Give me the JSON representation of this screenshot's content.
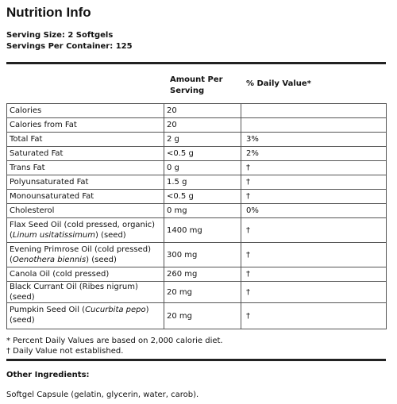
{
  "title": "Nutrition Info",
  "serving_size": "Serving Size: 2 Softgels",
  "servings_per_container": "Servings Per Container: 125",
  "header": {
    "amount_line1": "Amount Per",
    "amount_line2": "Serving",
    "daily_value": "% Daily Value*"
  },
  "rows": [
    {
      "name": "Calories",
      "amount": "20",
      "dv": ""
    },
    {
      "name": "Calories from Fat",
      "amount": "20",
      "dv": ""
    },
    {
      "name": "Total Fat",
      "amount": "2 g",
      "dv": "3%"
    },
    {
      "name": "Saturated Fat",
      "amount": "<0.5 g",
      "dv": "2%"
    },
    {
      "name": "Trans Fat",
      "amount": "0 g",
      "dv": "†"
    },
    {
      "name": "Polyunsaturated Fat",
      "amount": "1.5 g",
      "dv": "†"
    },
    {
      "name": "Monounsaturated Fat",
      "amount": "<0.5 g",
      "dv": "†"
    },
    {
      "name": "Cholesterol",
      "amount": "0 mg",
      "dv": "0%"
    },
    {
      "name": "Flax Seed Oil (cold pressed, organic)",
      "name_italic": "Linum usitatissimum",
      "name_suffix": " (seed)",
      "amount": "1400 mg",
      "dv": "†"
    },
    {
      "name": "Evening Primrose Oil (cold pressed)",
      "name_italic": "Oenothera biennis",
      "name_suffix": " (seed)",
      "amount": "300 mg",
      "dv": "†"
    },
    {
      "name": "Canola Oil (cold pressed)",
      "amount": "260 mg",
      "dv": "†"
    },
    {
      "name": "Black Currant Oil (Ribes nigrum) (seed)",
      "amount": "20 mg",
      "dv": "†"
    },
    {
      "name": "Pumpkin Seed Oil (",
      "name_italic": "Cucurbita pepo",
      "name_suffix": ") (seed)",
      "amount": "20 mg",
      "dv": "†"
    }
  ],
  "footnote1": "* Percent Daily Values are based on 2,000 calorie diet.",
  "footnote2": "† Daily Value not established.",
  "other_heading": "Other Ingredients:",
  "other_text": "Softgel Capsule (gelatin, glycerin, water, carob)."
}
